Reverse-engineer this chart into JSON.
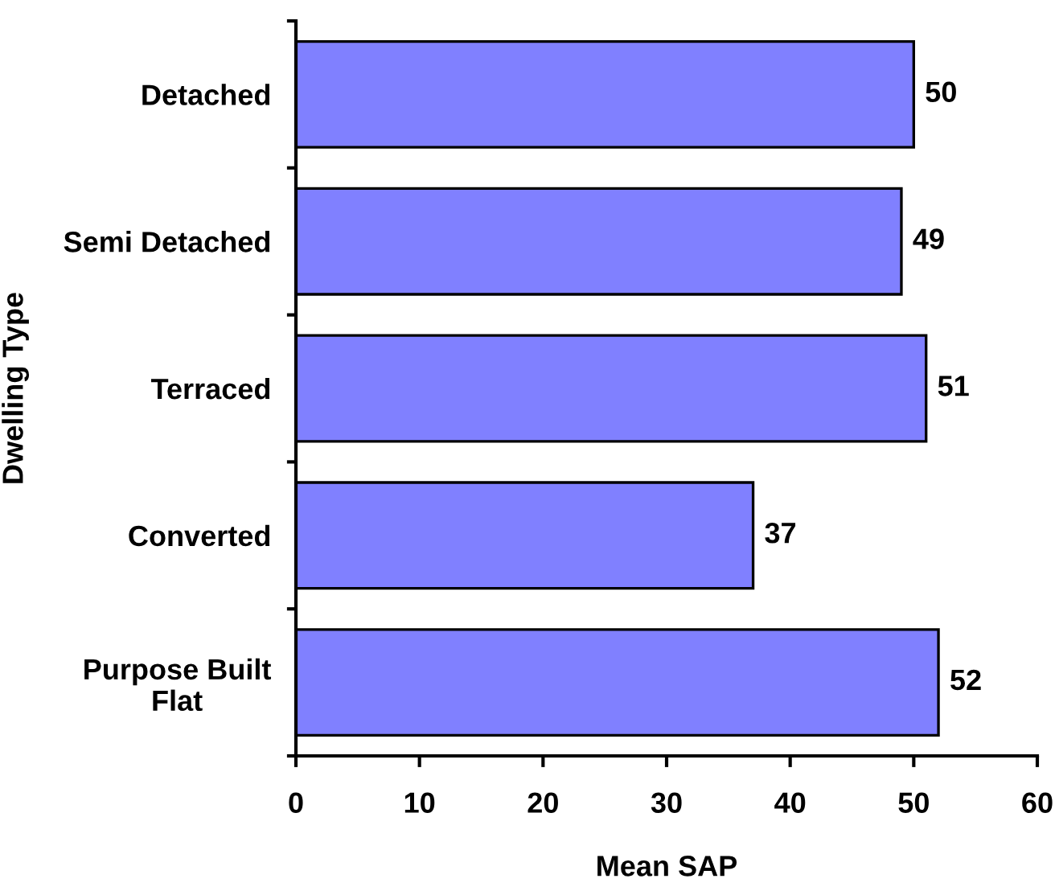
{
  "chart_data": {
    "type": "bar",
    "orientation": "horizontal",
    "categories": [
      "Detached",
      "Semi Detached",
      "Terraced",
      "Converted",
      "Purpose Built\nFlat"
    ],
    "values": [
      50,
      49,
      51,
      37,
      52
    ],
    "color": "#8080ff",
    "xlabel": "Mean SAP",
    "ylabel": "Dwelling Type",
    "xlim": [
      0,
      60
    ],
    "xticks": [
      0,
      10,
      20,
      30,
      40,
      50,
      60
    ],
    "data_labels": true
  }
}
